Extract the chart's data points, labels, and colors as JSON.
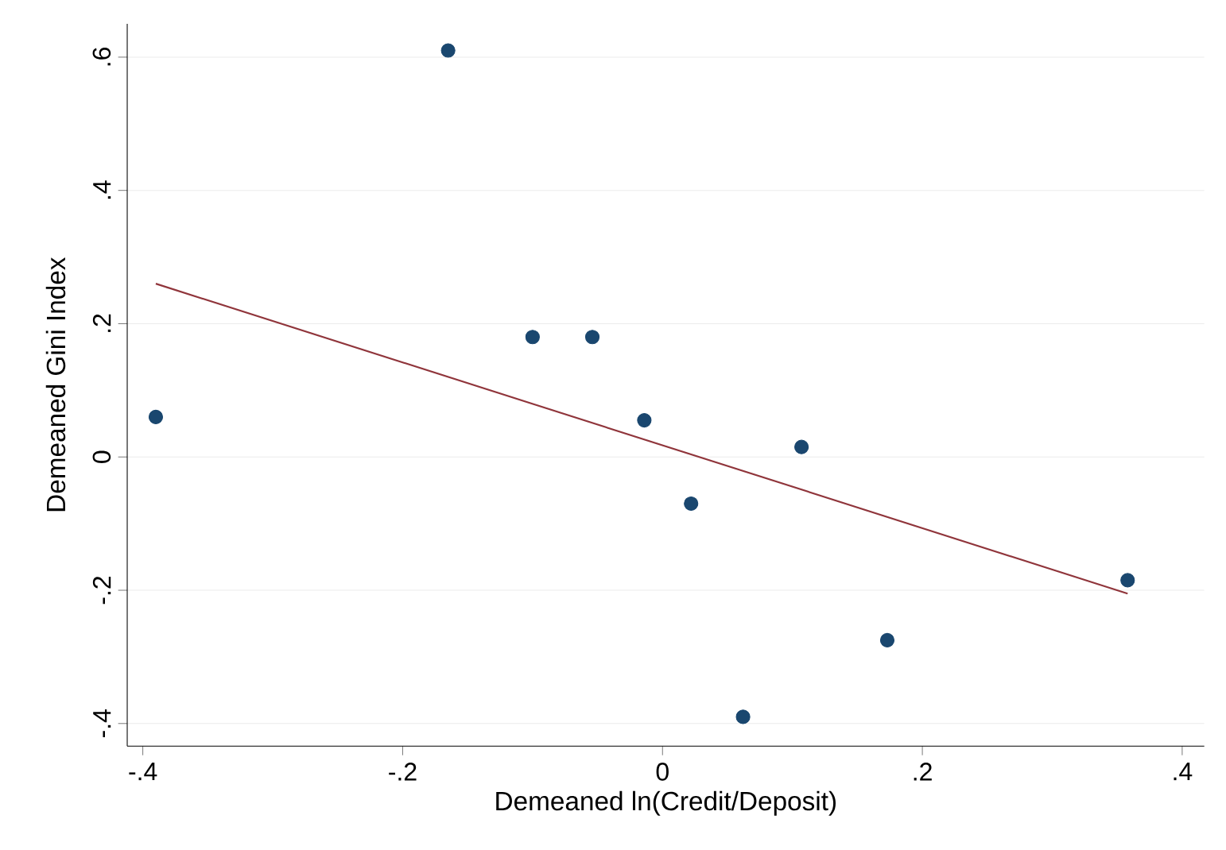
{
  "chart_data": {
    "type": "scatter",
    "xlabel": "Demeaned ln(Credit/Deposit)",
    "ylabel": "Demeaned Gini Index",
    "xlim": [
      -0.412,
      0.417
    ],
    "ylim": [
      -0.434,
      0.65
    ],
    "xticks": [
      {
        "value": -0.4,
        "label": "-.4"
      },
      {
        "value": -0.2,
        "label": "-.2"
      },
      0,
      {
        "value": 0.2,
        "label": ".2"
      },
      {
        "value": 0.4,
        "label": ".4"
      }
    ],
    "yticks": [
      {
        "value": -0.4,
        "label": "-.4"
      },
      {
        "value": -0.2,
        "label": "-.2"
      },
      0,
      {
        "value": 0.2,
        "label": ".2"
      },
      {
        "value": 0.4,
        "label": ".4"
      },
      {
        "value": 0.6,
        "label": ".6"
      }
    ],
    "grid": "y",
    "marker": "circle",
    "series": [
      {
        "type": "scatter",
        "color": "#1a476f",
        "x": [
          -0.39,
          -0.165,
          -0.1,
          -0.054,
          -0.014,
          0.022,
          0.107,
          0.062,
          0.173,
          0.358
        ],
        "values": [
          0.06,
          0.61,
          0.18,
          0.18,
          0.055,
          -0.07,
          0.015,
          -0.39,
          -0.275,
          -0.185
        ]
      },
      {
        "type": "line",
        "marker": "none",
        "color": "#90353b",
        "x": [
          -0.39,
          0.358
        ],
        "values": [
          0.26,
          -0.205
        ]
      }
    ]
  }
}
